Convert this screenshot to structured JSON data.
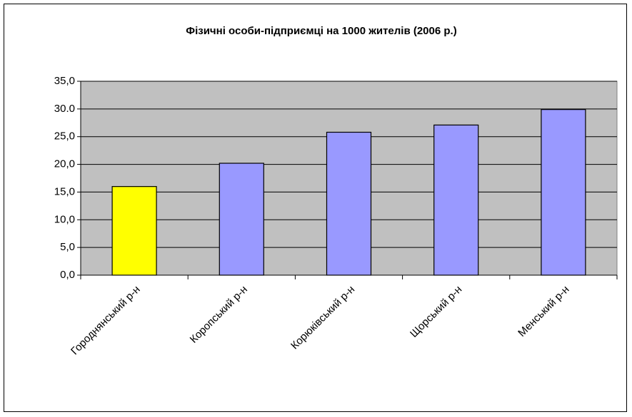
{
  "chart_data": {
    "type": "bar",
    "title": "Фізичні особи-підприємці на 1000 жителів (2006 р.)",
    "categories": [
      "Городнянський р-н",
      "Коропський р-н",
      "Корюківський р-н",
      "Щорський р-н",
      "Менський р-н"
    ],
    "values": [
      16.0,
      20.2,
      25.8,
      27.1,
      29.9
    ],
    "colors": [
      "#ffff00",
      "#9999ff",
      "#9999ff",
      "#9999ff",
      "#9999ff"
    ],
    "ylim": [
      0,
      35
    ],
    "yticks": [
      {
        "value": 0,
        "label": "0,0"
      },
      {
        "value": 5,
        "label": "5,0"
      },
      {
        "value": 10,
        "label": "10,0"
      },
      {
        "value": 15,
        "label": "15,0"
      },
      {
        "value": 20,
        "label": "20,0"
      },
      {
        "value": 25,
        "label": "25,0"
      },
      {
        "value": 30,
        "label": "30.0"
      },
      {
        "value": 35,
        "label": "35,0"
      }
    ],
    "grid": true
  }
}
